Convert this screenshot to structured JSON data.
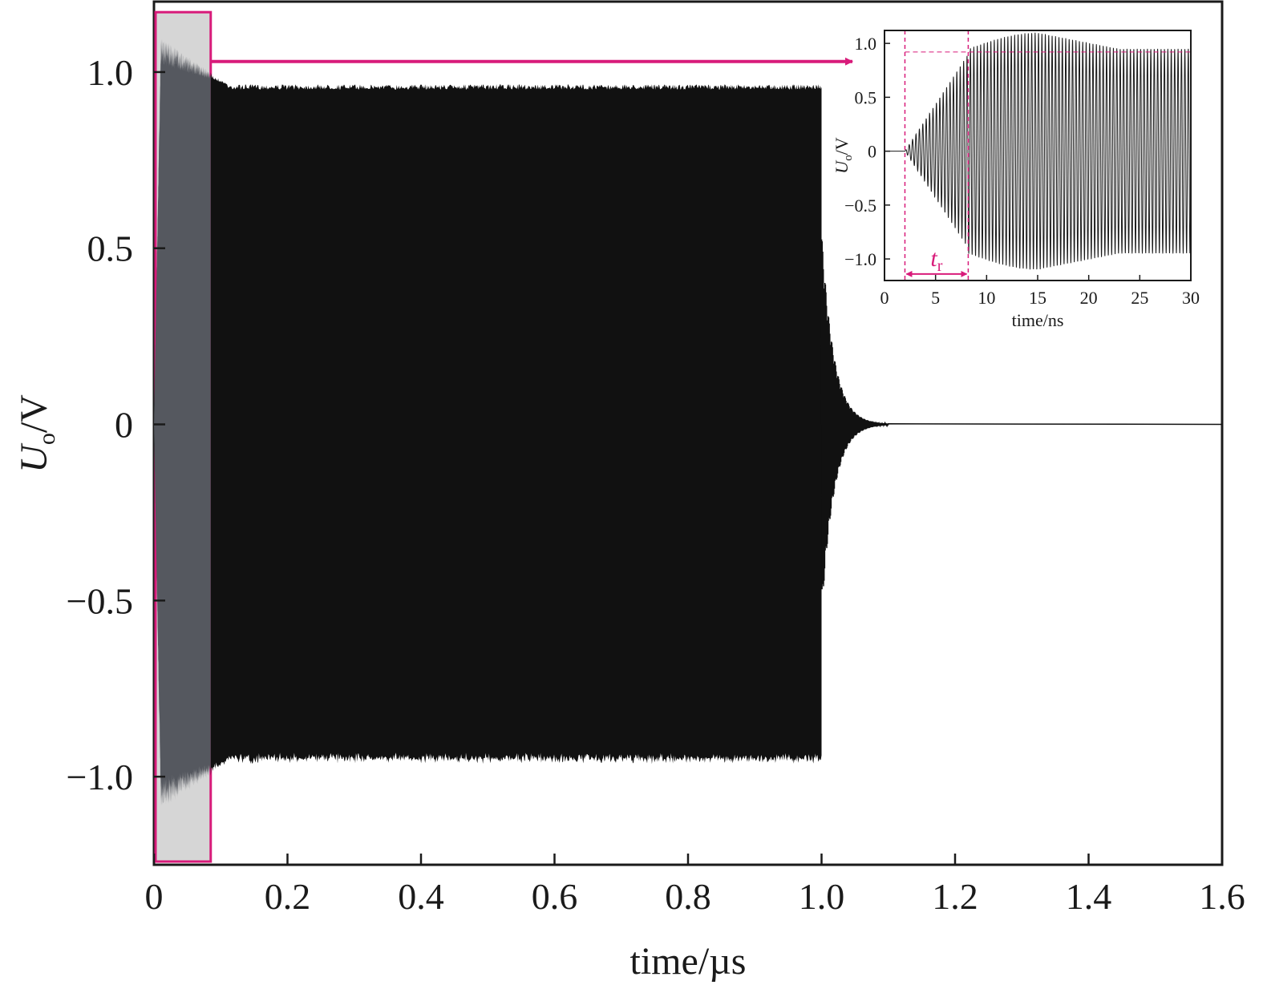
{
  "colors": {
    "signal": "#111111",
    "highlight_fill": "#d6d6d6",
    "highlight_signal": "#55585f",
    "accent": "#d81b7a",
    "axis": "#1a1a1a"
  },
  "chart_data": [
    {
      "type": "line",
      "description_role": "main",
      "xlabel": "time/µs",
      "ylabel_main": "U",
      "ylabel_sub": "o",
      "ylabel_unit": "/V",
      "xlim": [
        0,
        1.6
      ],
      "ylim": [
        -1.25,
        1.2
      ],
      "x_ticks": [
        0,
        0.2,
        0.4,
        0.6,
        0.8,
        1.0,
        1.2,
        1.4,
        1.6
      ],
      "x_tick_labels": [
        "0",
        "0.2",
        "0.4",
        "0.6",
        "0.8",
        "1.0",
        "1.2",
        "1.4",
        "1.6"
      ],
      "y_ticks": [
        1.0,
        0.5,
        0,
        -0.5,
        -1.0
      ],
      "y_tick_labels": [
        "1.0",
        "0.5",
        "0",
        "−0.5",
        "−1.0"
      ],
      "grid": false,
      "signal": {
        "kind": "burst-sine-envelope",
        "start": 0.0,
        "rise_end": 0.01,
        "overshoot_peak": 1.1,
        "transient_end": 0.11,
        "steady_amplitude": 0.965,
        "stop": 1.0,
        "ringdown_end": 1.1,
        "final_value": 0
      },
      "highlight_region": {
        "x": [
          0,
          0.085
        ],
        "y": [
          -1.25,
          1.17
        ]
      }
    },
    {
      "type": "line",
      "description_role": "inset",
      "xlabel": "time/ns",
      "ylabel_main": "U",
      "ylabel_sub": "o",
      "ylabel_unit": "/V",
      "xlim": [
        0,
        30
      ],
      "ylim": [
        -1.2,
        1.12
      ],
      "x_ticks": [
        0,
        5,
        10,
        15,
        20,
        25,
        30
      ],
      "x_tick_labels": [
        "0",
        "5",
        "10",
        "15",
        "20",
        "25",
        "30"
      ],
      "y_ticks": [
        1.0,
        0.5,
        0,
        -0.5,
        -1.0
      ],
      "y_tick_labels": [
        "1.0",
        "0.5",
        "0",
        "−0.5",
        "−1.0"
      ],
      "grid": false,
      "signal": {
        "kind": "sine-burst",
        "start_ns": 2.0,
        "rise_end_ns": 8.2,
        "peak_ns": 15.0,
        "peak_amplitude": 1.1,
        "steady_amplitude": 0.95,
        "cycles_per_ns": 3.0
      },
      "markers": {
        "tr_start": 2.0,
        "tr_end": 8.2,
        "reference_level": 0.92
      },
      "annotation": {
        "label_main": "t",
        "label_sub": "r"
      }
    }
  ]
}
